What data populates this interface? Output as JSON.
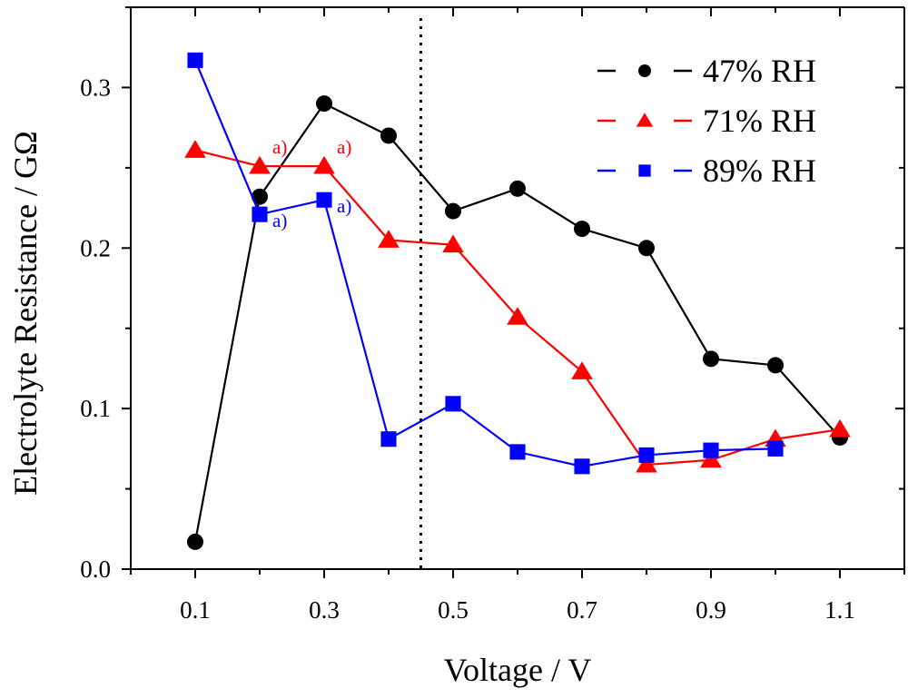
{
  "chart_data": {
    "type": "line",
    "title": "",
    "xlabel": "Voltage / V",
    "ylabel": "Electrolyte Resistance / GΩ",
    "xlim": [
      0.0,
      1.2
    ],
    "ylim": [
      0.0,
      0.35
    ],
    "x_ticks": [
      "0.1",
      "0.3",
      "0.5",
      "0.7",
      "0.9",
      "1.1"
    ],
    "y_ticks": [
      "0.0",
      "0.1",
      "0.2",
      "0.3"
    ],
    "grid": false,
    "legend_position": "top-right",
    "reference_line": {
      "x": 0.45,
      "style": "dotted"
    },
    "series": [
      {
        "name": "47% RH",
        "color": "#000000",
        "marker": "circle",
        "x": [
          0.1,
          0.2,
          0.3,
          0.4,
          0.5,
          0.6,
          0.7,
          0.8,
          0.9,
          1.0,
          1.1
        ],
        "values": [
          0.017,
          0.232,
          0.29,
          0.27,
          0.223,
          0.237,
          0.212,
          0.2,
          0.131,
          0.127,
          0.082
        ]
      },
      {
        "name": "71% RH",
        "color": "#ff0000",
        "marker": "triangle",
        "x": [
          0.1,
          0.2,
          0.3,
          0.4,
          0.5,
          0.6,
          0.7,
          0.8,
          0.9,
          1.0,
          1.1
        ],
        "values": [
          0.261,
          0.251,
          0.251,
          0.205,
          0.202,
          0.157,
          0.123,
          0.065,
          0.068,
          0.081,
          0.087
        ]
      },
      {
        "name": "89% RH",
        "color": "#0000ff",
        "marker": "square",
        "x": [
          0.1,
          0.2,
          0.3,
          0.4,
          0.5,
          0.6,
          0.7,
          0.8,
          0.9,
          1.0
        ],
        "values": [
          0.317,
          0.221,
          0.23,
          0.081,
          0.103,
          0.073,
          0.064,
          0.071,
          0.074,
          0.075
        ]
      }
    ],
    "annotations": [
      {
        "text": "a)",
        "x": 0.2,
        "y": 0.251,
        "series": "71% RH"
      },
      {
        "text": "a)",
        "x": 0.3,
        "y": 0.251,
        "series": "71% RH"
      },
      {
        "text": "a)",
        "x": 0.2,
        "y": 0.221,
        "series": "89% RH"
      },
      {
        "text": "a)",
        "x": 0.3,
        "y": 0.23,
        "series": "89% RH"
      }
    ]
  }
}
